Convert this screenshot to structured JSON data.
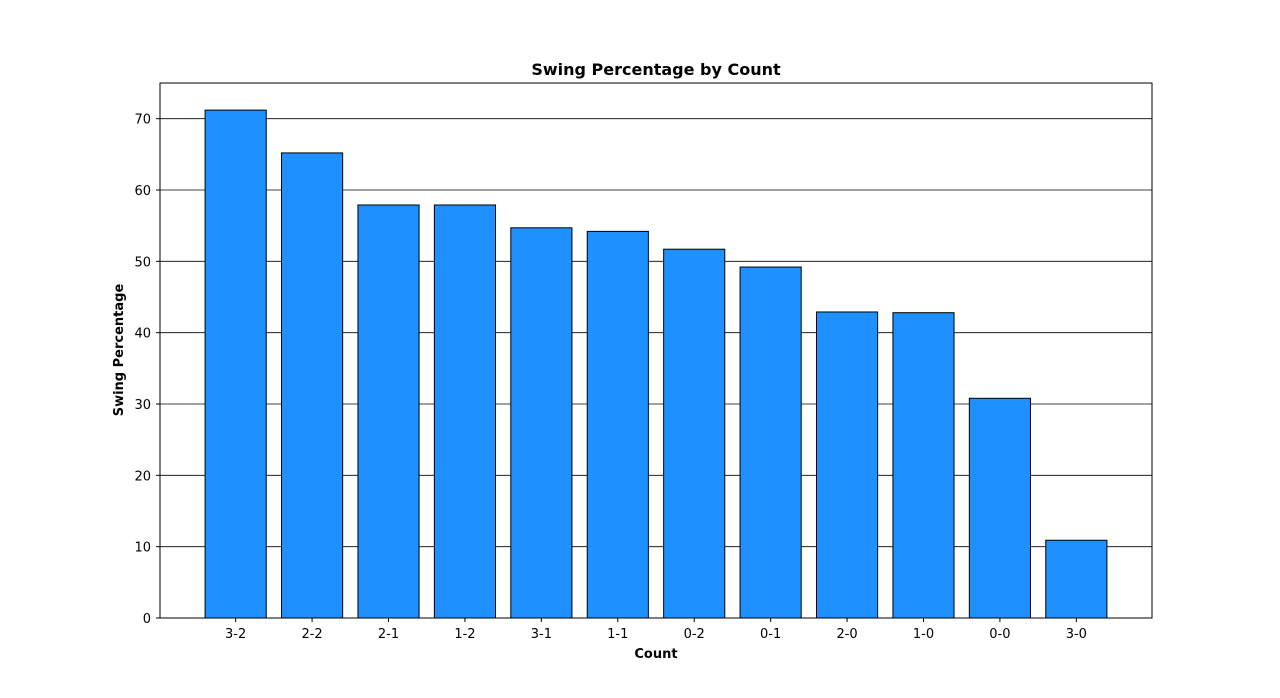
{
  "chart_data": {
    "type": "bar",
    "title": "Swing Percentage by Count",
    "xlabel": "Count",
    "ylabel": "Swing Percentage",
    "categories": [
      "3-2",
      "2-2",
      "2-1",
      "1-2",
      "3-1",
      "1-1",
      "0-2",
      "0-1",
      "2-0",
      "1-0",
      "0-0",
      "3-0"
    ],
    "values": [
      71.2,
      65.2,
      57.9,
      57.9,
      54.7,
      54.2,
      51.7,
      49.2,
      42.9,
      42.8,
      30.8,
      10.9
    ],
    "ylim": [
      0,
      75
    ],
    "yticks": [
      0,
      10,
      20,
      30,
      40,
      50,
      60,
      70
    ],
    "grid": "horizontal",
    "colors": {
      "bar_fill": "#1E90FF",
      "bar_edge": "#000000",
      "grid": "#000000"
    }
  }
}
